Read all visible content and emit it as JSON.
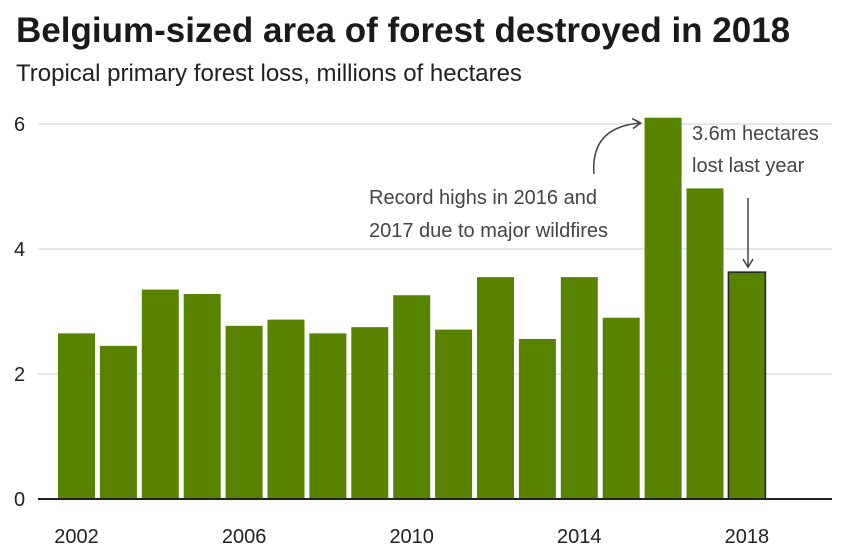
{
  "chart_data": {
    "type": "bar",
    "title": "Belgium-sized area of forest destroyed in 2018",
    "subtitle": "Tropical primary forest loss, millions of hectares",
    "categories": [
      "2002",
      "2003",
      "2004",
      "2005",
      "2006",
      "2007",
      "2008",
      "2009",
      "2010",
      "2011",
      "2012",
      "2013",
      "2014",
      "2015",
      "2016",
      "2017",
      "2018"
    ],
    "values": [
      2.65,
      2.45,
      3.35,
      3.28,
      2.77,
      2.87,
      2.65,
      2.75,
      3.26,
      2.71,
      3.55,
      2.56,
      3.55,
      2.9,
      6.1,
      4.97,
      3.63
    ],
    "x_tick_labels": [
      "2002",
      "2006",
      "2010",
      "2014",
      "2018"
    ],
    "y_ticks": [
      0,
      2,
      4,
      6
    ],
    "ylim": [
      0,
      6.3
    ],
    "xlabel": "",
    "ylabel": "",
    "grid": true,
    "colors": {
      "bar": "#588300",
      "highlight_outline": "#222222",
      "grid": "#cccccc",
      "axis": "#222222"
    },
    "annotations": [
      {
        "lines": [
          "Record highs in 2016 and",
          "2017 due to major wildfires"
        ],
        "target_category": "2016"
      },
      {
        "lines": [
          "3.6m hectares",
          "lost last year"
        ],
        "target_category": "2018"
      }
    ]
  }
}
